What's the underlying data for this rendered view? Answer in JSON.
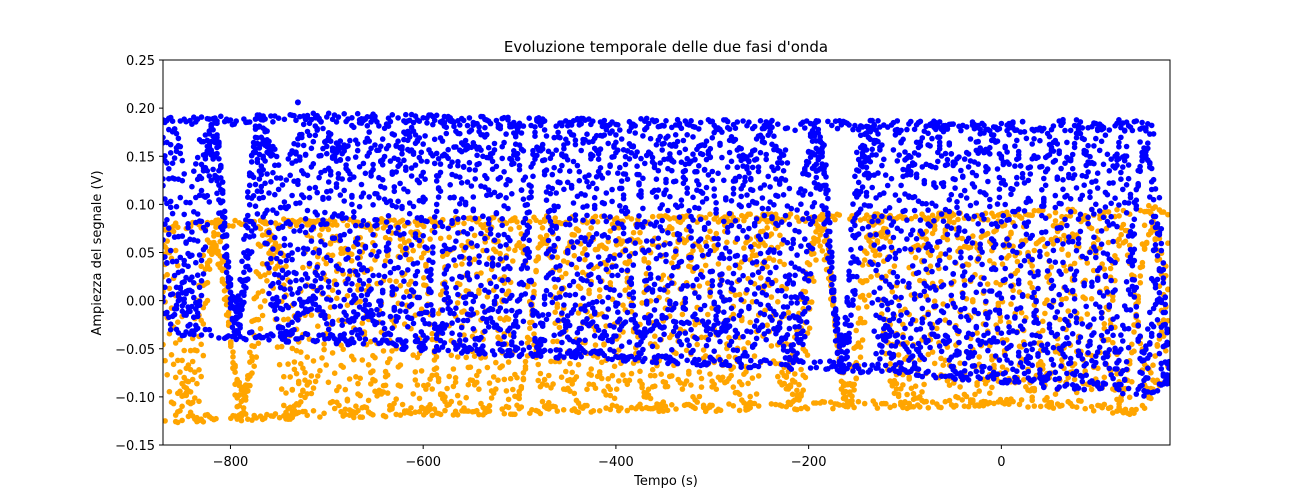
{
  "chart_data": {
    "type": "scatter",
    "title": "Evoluzione temporale delle due fasi d'onda",
    "xlabel": "Tempo (s)",
    "ylabel": "Ampiezza del segnale (V)",
    "xlim": [
      -870,
      175
    ],
    "ylim": [
      -0.15,
      0.25
    ],
    "x_ticks": [
      -800,
      -600,
      -400,
      -200,
      0
    ],
    "x_tick_labels": [
      "−800",
      "−600",
      "−400",
      "−200",
      "0"
    ],
    "y_ticks": [
      -0.15,
      -0.1,
      -0.05,
      0.0,
      0.05,
      0.1,
      0.15,
      0.2,
      0.25
    ],
    "y_tick_labels": [
      "−0.15",
      "−0.10",
      "−0.05",
      "0.00",
      "0.05",
      "0.10",
      "0.15",
      "0.20",
      "0.25"
    ],
    "grid": false,
    "legend": "none",
    "series": [
      {
        "color": "#ffa500",
        "x": [
          -870,
          -800,
          -700,
          -600,
          -500,
          -400,
          -300,
          -200,
          -100,
          0,
          60,
          100,
          130,
          150,
          160,
          175
        ],
        "y_max": [
          0.08,
          0.085,
          0.085,
          0.085,
          0.088,
          0.088,
          0.09,
          0.09,
          0.09,
          0.092,
          0.095,
          0.095,
          0.095,
          0.098,
          0.1,
          0.09
        ],
        "y_min": [
          -0.13,
          -0.125,
          -0.122,
          -0.12,
          -0.118,
          -0.115,
          -0.115,
          -0.113,
          -0.112,
          -0.11,
          -0.112,
          -0.115,
          -0.12,
          -0.115,
          -0.09,
          -0.085
        ]
      },
      {
        "color": "#0000ff",
        "x": [
          -870,
          -800,
          -700,
          -600,
          -500,
          -400,
          -300,
          -200,
          -100,
          0,
          60,
          100,
          130,
          150,
          160,
          175
        ],
        "y_max": [
          0.19,
          0.192,
          0.195,
          0.193,
          0.19,
          0.19,
          0.188,
          0.187,
          0.187,
          0.185,
          0.188,
          0.188,
          0.188,
          0.187,
          0.18,
          -0.08
        ],
        "y_min": [
          -0.035,
          -0.04,
          -0.045,
          -0.052,
          -0.058,
          -0.062,
          -0.068,
          -0.072,
          -0.078,
          -0.085,
          -0.092,
          -0.095,
          -0.098,
          -0.1,
          -0.095,
          -0.085
        ]
      }
    ],
    "annotations": [
      {
        "series": 1,
        "x": -730,
        "y": 0.206
      }
    ]
  }
}
